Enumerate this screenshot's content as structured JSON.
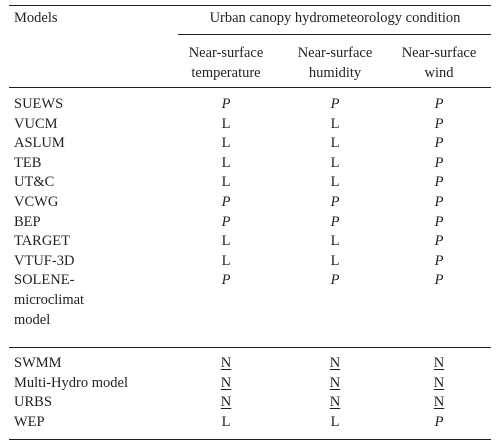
{
  "table": {
    "header": {
      "models_label": "Models",
      "group_label": "Urban canopy hydrometeorology condition",
      "columns": [
        [
          "Near-surface",
          "temperature"
        ],
        [
          "Near-surface",
          "humidity"
        ],
        [
          "Near-surface",
          "wind"
        ]
      ]
    },
    "groups": [
      {
        "rows": [
          {
            "model": [
              "SUEWS"
            ],
            "values": [
              "P",
              "P",
              "P"
            ]
          },
          {
            "model": [
              "VUCM"
            ],
            "values": [
              "L",
              "L",
              "P"
            ]
          },
          {
            "model": [
              "ASLUM"
            ],
            "values": [
              "L",
              "L",
              "P"
            ]
          },
          {
            "model": [
              "TEB"
            ],
            "values": [
              "L",
              "L",
              "P"
            ]
          },
          {
            "model": [
              "UT&C"
            ],
            "values": [
              "L",
              "L",
              "P"
            ]
          },
          {
            "model": [
              "VCWG"
            ],
            "values": [
              "P",
              "P",
              "P"
            ]
          },
          {
            "model": [
              "BEP"
            ],
            "values": [
              "P",
              "P",
              "P"
            ]
          },
          {
            "model": [
              "TARGET"
            ],
            "values": [
              "L",
              "L",
              "P"
            ]
          },
          {
            "model": [
              "VTUF-3D"
            ],
            "values": [
              "L",
              "L",
              "P"
            ]
          },
          {
            "model": [
              "SOLENE-",
              "microclimat",
              "model"
            ],
            "values": [
              "P",
              "P",
              "P"
            ]
          }
        ]
      },
      {
        "rows": [
          {
            "model": [
              "SWMM"
            ],
            "values": [
              "N",
              "N",
              "N"
            ]
          },
          {
            "model": [
              "Multi-Hydro model"
            ],
            "values": [
              "N",
              "N",
              "N"
            ]
          },
          {
            "model": [
              "URBS"
            ],
            "values": [
              "N",
              "N",
              "N"
            ]
          },
          {
            "model": [
              "WEP"
            ],
            "values": [
              "L",
              "L",
              "P"
            ]
          }
        ]
      }
    ],
    "value_styles": {
      "P": "italic",
      "N": "underline",
      "L": "plain"
    }
  }
}
